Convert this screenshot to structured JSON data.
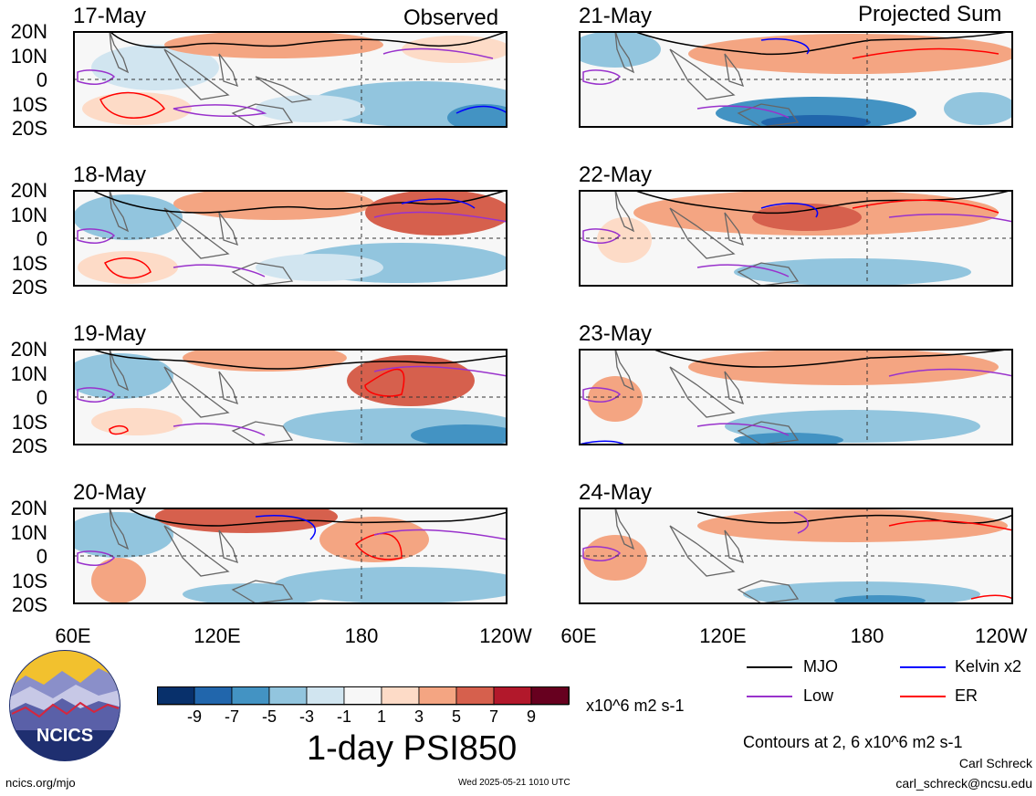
{
  "headers": {
    "left": "Observed",
    "right": "Projected Sum"
  },
  "left_panels": [
    {
      "date": "17-May"
    },
    {
      "date": "18-May"
    },
    {
      "date": "19-May"
    },
    {
      "date": "20-May"
    }
  ],
  "right_panels": [
    {
      "date": "21-May"
    },
    {
      "date": "22-May"
    },
    {
      "date": "23-May"
    },
    {
      "date": "24-May"
    }
  ],
  "lat_labels": [
    "20N",
    "10N",
    "0",
    "10S",
    "20S"
  ],
  "lon_labels": [
    "60E",
    "120E",
    "180",
    "120W"
  ],
  "right_lon_labels": [
    "60E",
    "120E",
    "180",
    "120W"
  ],
  "colorbar": {
    "colors": [
      "#08306b",
      "#2166ac",
      "#4393c3",
      "#92c5de",
      "#d1e5f0",
      "#f7f7f7",
      "#fddbc7",
      "#f4a582",
      "#d6604d",
      "#b2182b",
      "#67001f"
    ],
    "ticks": [
      "-9",
      "-7",
      "-5",
      "-3",
      "-1",
      "1",
      "3",
      "5",
      "7",
      "9"
    ],
    "units": "x10^6 m2 s-1",
    "title": "1-day PSI850"
  },
  "legend": {
    "items": [
      {
        "label": "MJO",
        "color": "#000000"
      },
      {
        "label": "Kelvin x2",
        "color": "#0000ff"
      },
      {
        "label": "Low",
        "color": "#9932cc"
      },
      {
        "label": "ER",
        "color": "#ff0000"
      }
    ],
    "contour_note": "Contours at 2, 6 x10^6 m2 s-1"
  },
  "logo": {
    "text": "NCICS"
  },
  "footer": {
    "site": "ncics.org/mjo",
    "timestamp": "Wed 2025-05-21 1010 UTC",
    "author": "Carl Schreck",
    "email": "carl_schreck@ncsu.edu"
  }
}
